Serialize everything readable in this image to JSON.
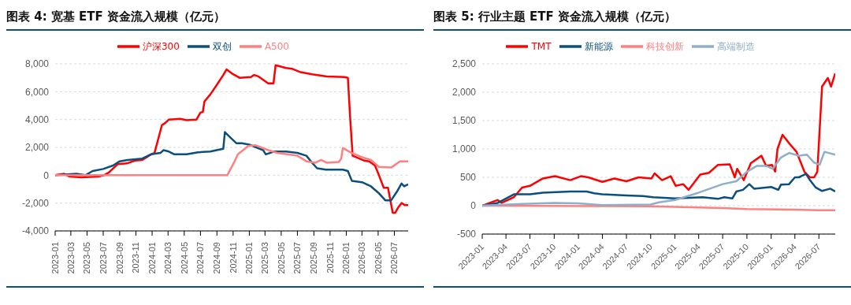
{
  "chart_data": [
    {
      "type": "line",
      "title": "图表 4: 宽基 ETF 资金流入规模（亿元）",
      "legend": "top",
      "grid": "y",
      "marker": "none",
      "line_style": "solid",
      "xlim": [
        "2023-01-01",
        "2026-08-22"
      ],
      "xticks": [
        "2023-01",
        "2023-03",
        "2023-05",
        "2023-07",
        "2023-09",
        "2023-11",
        "2024-01",
        "2024-03",
        "2024-05",
        "2024-07",
        "2024-09",
        "2024-11",
        "2025-01",
        "2025-03",
        "2025-05",
        "2025-07",
        "2025-09",
        "2025-11",
        "2026-01",
        "2026-03",
        "2026-05",
        "2026-07"
      ],
      "ylim": [
        -4000,
        8000
      ],
      "yticks": [
        {
          "value": -4000,
          "label": "-4,000"
        },
        {
          "value": -2000,
          "label": "-2,000"
        },
        0,
        {
          "value": 2000,
          "label": "2,000"
        },
        {
          "value": 4000,
          "label": "4,000"
        },
        {
          "value": 6000,
          "label": "6,000"
        },
        {
          "value": 8000,
          "label": "8,000"
        }
      ],
      "series": [
        {
          "name": "沪深300",
          "color": "#ff0000",
          "x": [
            "2023-01-01",
            "2023-02-04",
            "2023-02-25",
            "2023-04-10",
            "2023-06-13",
            "2023-07-04",
            "2023-07-22",
            "2023-08-25",
            "2023-09-28",
            "2023-10-28",
            "2023-11-25",
            "2023-12-28",
            "2024-01-10",
            "2024-02-07",
            "2024-02-19",
            "2024-03-04",
            "2024-04-16",
            "2024-05-10",
            "2024-06-16",
            "2024-07-01",
            "2024-07-10",
            "2024-07-16",
            "2024-08-07",
            "2024-09-01",
            "2024-09-25",
            "2024-10-07",
            "2024-10-28",
            "2024-11-25",
            "2025-01-07",
            "2025-01-19",
            "2025-02-04",
            "2025-03-13",
            "2025-04-02",
            "2025-04-10",
            "2025-05-19",
            "2025-06-10",
            "2025-07-13",
            "2025-08-25",
            "2025-10-19",
            "2025-12-25",
            "2026-01-07",
            "2026-01-16",
            "2026-01-25",
            "2026-02-19",
            "2026-03-10",
            "2026-03-28",
            "2026-04-19",
            "2026-05-04",
            "2026-05-22",
            "2026-06-07",
            "2026-06-25",
            "2026-07-04",
            "2026-07-16",
            "2026-07-28",
            "2026-08-10",
            "2026-08-22"
          ],
          "values": [
            0,
            100,
            -100,
            -150,
            -100,
            0,
            200,
            800,
            850,
            1050,
            1100,
            1500,
            1600,
            3600,
            3750,
            4000,
            4050,
            3950,
            4000,
            4500,
            4550,
            5300,
            5800,
            6500,
            7200,
            7600,
            7300,
            7000,
            7050,
            7200,
            7100,
            6600,
            6600,
            7900,
            7700,
            7650,
            7400,
            7250,
            7100,
            7050,
            7000,
            4000,
            1400,
            1200,
            1050,
            1000,
            700,
            0,
            -900,
            -900,
            -2700,
            -2700,
            -2300,
            -2000,
            -2150,
            -2150
          ]
        },
        {
          "name": "双创",
          "color": "#0b4f7e",
          "x": [
            "2023-01-01",
            "2023-03-22",
            "2023-04-25",
            "2023-05-22",
            "2023-07-01",
            "2023-08-07",
            "2023-09-01",
            "2023-10-01",
            "2023-11-25",
            "2023-12-28",
            "2024-02-01",
            "2024-02-13",
            "2024-03-04",
            "2024-03-25",
            "2024-05-10",
            "2024-06-22",
            "2024-08-07",
            "2024-09-25",
            "2024-10-01",
            "2024-10-22",
            "2024-11-13",
            "2024-12-04",
            "2025-01-01",
            "2025-02-22",
            "2025-03-04",
            "2025-04-04",
            "2025-05-19",
            "2025-07-01",
            "2025-08-04",
            "2025-08-25",
            "2025-09-13",
            "2025-10-16",
            "2025-11-22",
            "2025-12-19",
            "2026-01-07",
            "2026-01-22",
            "2026-03-01",
            "2026-04-04",
            "2026-05-04",
            "2026-05-28",
            "2026-06-19",
            "2026-07-10",
            "2026-07-28",
            "2026-08-07",
            "2026-08-22"
          ],
          "values": [
            0,
            100,
            0,
            300,
            450,
            700,
            1000,
            1100,
            1200,
            1500,
            1600,
            1800,
            1700,
            1500,
            1500,
            1650,
            1700,
            1900,
            3100,
            2700,
            2300,
            2300,
            2200,
            1800,
            1500,
            1700,
            1700,
            1600,
            1400,
            900,
            500,
            400,
            400,
            400,
            300,
            -400,
            -500,
            -800,
            -1300,
            -1800,
            -1800,
            -1200,
            -600,
            -800,
            -650
          ]
        },
        {
          "name": "A500",
          "color": "#ff8080",
          "x": [
            "2023-01-01",
            "2024-10-10",
            "2024-11-04",
            "2024-11-19",
            "2024-12-28",
            "2025-01-25",
            "2025-03-13",
            "2025-04-16",
            "2025-07-01",
            "2025-08-04",
            "2025-09-07",
            "2025-09-28",
            "2025-10-19",
            "2025-12-04",
            "2025-12-13",
            "2025-12-19",
            "2026-01-22",
            "2026-03-01",
            "2026-04-04",
            "2026-05-04",
            "2026-06-19",
            "2026-07-22",
            "2026-08-22"
          ],
          "values": [
            0,
            0,
            900,
            1500,
            2100,
            2150,
            1800,
            1600,
            1400,
            1000,
            900,
            1100,
            900,
            950,
            1200,
            1950,
            1600,
            1300,
            1100,
            600,
            550,
            1000,
            1000
          ]
        }
      ]
    },
    {
      "type": "line",
      "title": "图表 5: 行业主题 ETF 资金流入规模（亿元）",
      "legend": "top",
      "grid": "y",
      "marker": "none",
      "line_style": "solid",
      "xlim": [
        "2023-01-01",
        "2026-09-01"
      ],
      "xticks": [
        "2023-01",
        "2023-04",
        "2023-07",
        "2023-10",
        "2024-01",
        "2024-04",
        "2024-07",
        "2024-10",
        "2025-01",
        "2025-04",
        "2025-07",
        "2025-10",
        "2026-01",
        "2026-04",
        "2026-07"
      ],
      "ylim": [
        -500,
        2500
      ],
      "yticks": [
        -500,
        0,
        500,
        {
          "value": 1000,
          "label": "1,000"
        },
        {
          "value": 1500,
          "label": "1,500"
        },
        {
          "value": 2000,
          "label": "2,000"
        },
        {
          "value": 2500,
          "label": "2,500"
        }
      ],
      "series": [
        {
          "name": "TMT",
          "color": "#ff0000",
          "x": [
            "2023-01-01",
            "2023-02-28",
            "2023-03-16",
            "2023-05-01",
            "2023-06-01",
            "2023-07-01",
            "2023-08-19",
            "2023-10-04",
            "2023-12-01",
            "2024-01-10",
            "2024-02-07",
            "2024-04-01",
            "2024-05-16",
            "2024-07-01",
            "2024-08-16",
            "2024-10-04",
            "2024-10-16",
            "2024-11-13",
            "2024-12-16",
            "2025-01-04",
            "2025-02-01",
            "2025-02-22",
            "2025-04-07",
            "2025-05-10",
            "2025-06-13",
            "2025-07-28",
            "2025-08-16",
            "2025-08-25",
            "2025-09-19",
            "2025-10-16",
            "2025-11-25",
            "2025-12-13",
            "2026-01-04",
            "2026-01-16",
            "2026-01-25",
            "2026-02-13",
            "2026-03-10",
            "2026-04-07",
            "2026-05-07",
            "2026-05-28",
            "2026-06-13",
            "2026-06-25",
            "2026-07-13",
            "2026-08-04",
            "2026-08-16",
            "2026-09-01"
          ],
          "values": [
            0,
            100,
            50,
            150,
            320,
            350,
            480,
            520,
            450,
            520,
            500,
            420,
            480,
            430,
            500,
            480,
            570,
            450,
            520,
            350,
            380,
            280,
            550,
            580,
            720,
            730,
            500,
            650,
            450,
            750,
            880,
            700,
            720,
            600,
            1000,
            1250,
            1100,
            950,
            600,
            500,
            500,
            600,
            2100,
            2250,
            2100,
            2330
          ]
        },
        {
          "name": "新能源",
          "color": "#0b4f7e",
          "x": [
            "2023-01-01",
            "2023-03-01",
            "2023-05-01",
            "2023-07-01",
            "2023-08-19",
            "2023-12-01",
            "2024-02-01",
            "2024-03-01",
            "2024-04-01",
            "2024-07-01",
            "2024-09-01",
            "2024-10-10",
            "2025-01-01",
            "2025-02-22",
            "2025-04-16",
            "2025-06-13",
            "2025-07-07",
            "2025-08-07",
            "2025-08-22",
            "2025-09-16",
            "2025-10-10",
            "2025-10-28",
            "2026-01-01",
            "2026-01-28",
            "2026-02-07",
            "2026-03-10",
            "2026-04-01",
            "2026-04-16",
            "2026-05-13",
            "2026-05-28",
            "2026-06-19",
            "2026-07-13",
            "2026-08-13",
            "2026-09-01"
          ],
          "values": [
            0,
            50,
            200,
            200,
            230,
            250,
            250,
            220,
            200,
            180,
            170,
            150,
            130,
            140,
            150,
            120,
            150,
            130,
            250,
            280,
            380,
            300,
            330,
            280,
            370,
            380,
            500,
            500,
            560,
            450,
            320,
            260,
            300,
            250
          ]
        },
        {
          "name": "科技创新",
          "color": "#ff8080",
          "x": [
            "2023-01-01",
            "2024-10-01",
            "2025-01-01",
            "2025-07-01",
            "2025-10-01",
            "2026-04-01",
            "2026-07-01",
            "2026-09-01"
          ],
          "values": [
            0,
            -10,
            -20,
            -40,
            -60,
            -70,
            -80,
            -80
          ]
        },
        {
          "name": "高端制造",
          "color": "#8fafc8",
          "x": [
            "2023-01-01",
            "2023-06-01",
            "2023-10-01",
            "2024-01-01",
            "2024-04-01",
            "2024-10-01",
            "2024-11-01",
            "2025-01-01",
            "2025-04-01",
            "2025-07-01",
            "2025-08-22",
            "2025-10-01",
            "2025-11-07",
            "2025-12-13",
            "2026-01-07",
            "2026-02-07",
            "2026-03-10",
            "2026-04-16",
            "2026-05-16",
            "2026-06-13",
            "2026-07-04",
            "2026-07-22",
            "2026-09-01"
          ],
          "values": [
            0,
            30,
            50,
            40,
            10,
            20,
            60,
            100,
            230,
            380,
            430,
            600,
            700,
            700,
            650,
            850,
            930,
            880,
            900,
            760,
            720,
            950,
            900
          ]
        }
      ]
    }
  ]
}
